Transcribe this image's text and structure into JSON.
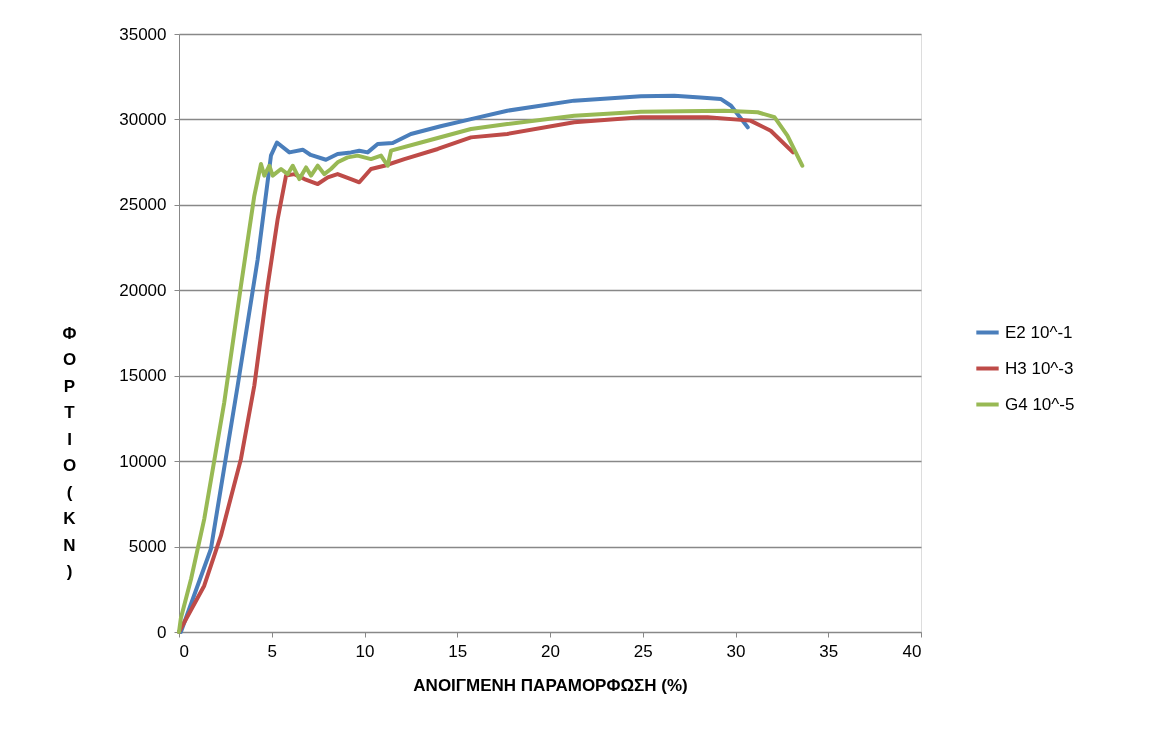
{
  "chart_data": {
    "type": "line",
    "xlabel": "ΑΝΟΙΓΜΕΝΗ ΠΑΡΑΜΟΡΦΩΣΗ (%)",
    "ylabel": "ΦΟΡΤΙΟ (ΚΝ)",
    "xlim": [
      0,
      40
    ],
    "xticks": [
      0,
      5,
      10,
      15,
      20,
      25,
      30,
      35,
      40
    ],
    "ylim": [
      0,
      35000
    ],
    "yticks": [
      0,
      5000,
      10000,
      15000,
      20000,
      25000,
      30000,
      35000
    ],
    "grid": "y",
    "legend": "right",
    "marker": "none",
    "line_style": "solid",
    "series": [
      {
        "name": "E2 10^-1",
        "color": "#4a7ebb",
        "x": [
          0,
          0.1,
          1.72,
          3.16,
          4.24,
          4.96,
          5.28,
          5.95,
          6.67,
          7.1,
          7.92,
          8.55,
          9.27,
          9.72,
          10.17,
          10.71,
          11.52,
          12.5,
          14.1,
          15.74,
          17.7,
          21.3,
          24.9,
          26.7,
          28.1,
          29.2,
          29.76,
          30.66
        ],
        "values": [
          0,
          0,
          4860,
          14400,
          21800,
          27900,
          28650,
          28070,
          28230,
          27920,
          27640,
          27980,
          28070,
          28170,
          28070,
          28560,
          28620,
          29150,
          29600,
          30020,
          30510,
          31100,
          31350,
          31380,
          31290,
          31200,
          30800,
          29540
        ]
      },
      {
        "name": "H3 10^-3",
        "color": "#be4b48",
        "x": [
          0,
          1.36,
          2.26,
          3.34,
          4.06,
          4.78,
          5.32,
          5.77,
          6.22,
          6.76,
          7.48,
          8.02,
          8.55,
          9.27,
          9.72,
          10.35,
          11.07,
          12.15,
          13.95,
          15.74,
          17.7,
          21.3,
          24.9,
          28.5,
          30.8,
          31.9,
          33.1
        ],
        "values": [
          0,
          2710,
          5640,
          10130,
          14420,
          20270,
          24170,
          26710,
          26800,
          26510,
          26220,
          26610,
          26800,
          26510,
          26320,
          27100,
          27290,
          27680,
          28270,
          28950,
          29150,
          29830,
          30130,
          30130,
          29930,
          29340,
          28070
        ]
      },
      {
        "name": "G4 10^-5",
        "color": "#98b954",
        "x": [
          0,
          0.1,
          0.65,
          1.36,
          2.44,
          3.34,
          4.06,
          4.42,
          4.6,
          4.87,
          5.05,
          5.5,
          5.86,
          6.13,
          6.49,
          6.85,
          7.12,
          7.48,
          7.83,
          8.19,
          8.55,
          9.09,
          9.63,
          10.35,
          10.89,
          11.25,
          11.43,
          13.05,
          15.74,
          17.7,
          21.3,
          24.9,
          29.4,
          31.2,
          32.1,
          32.8,
          33.6
        ],
        "values": [
          0,
          800,
          3100,
          6610,
          13440,
          20270,
          25530,
          27390,
          26710,
          27290,
          26710,
          27100,
          26800,
          27290,
          26510,
          27190,
          26710,
          27290,
          26800,
          27100,
          27490,
          27780,
          27880,
          27680,
          27880,
          27290,
          28170,
          28650,
          29440,
          29730,
          30220,
          30450,
          30510,
          30420,
          30130,
          29050,
          27290
        ]
      }
    ]
  }
}
